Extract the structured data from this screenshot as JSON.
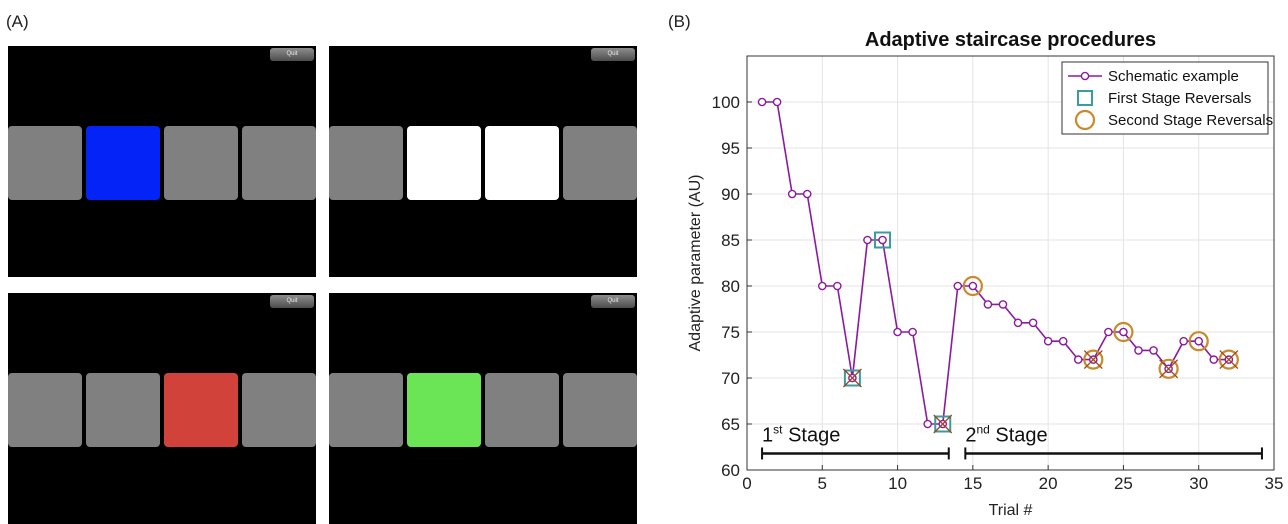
{
  "panel_a": {
    "label": "(A)",
    "screens": [
      {
        "quit_label": "Quit",
        "tiles": [
          "#808080",
          "#0323f7",
          "#808080",
          "#808080"
        ]
      },
      {
        "quit_label": "Quit",
        "tiles": [
          "#808080",
          "#ffffff",
          "#ffffff",
          "#808080"
        ]
      },
      {
        "quit_label": "Quit",
        "tiles": [
          "#808080",
          "#808080",
          "#d1423b",
          "#808080"
        ]
      },
      {
        "quit_label": "Quit",
        "tiles": [
          "#808080",
          "#6be455",
          "#808080",
          "#808080"
        ]
      }
    ]
  },
  "panel_b": {
    "label": "(B)"
  },
  "chart_data": {
    "type": "line",
    "title": "Adaptive staircase procedures",
    "xlabel": "Trial #",
    "ylabel": "Adaptive parameter (AU)",
    "xlim": [
      0,
      35
    ],
    "ylim": [
      60,
      105
    ],
    "xticks": [
      0,
      5,
      10,
      15,
      20,
      25,
      30,
      35
    ],
    "yticks": [
      60,
      65,
      70,
      75,
      80,
      85,
      90,
      95,
      100
    ],
    "grid": true,
    "legend_position": "top-right",
    "series": [
      {
        "name": "Schematic example",
        "color": "#8b1a9e",
        "x": [
          1,
          2,
          3,
          4,
          5,
          6,
          7,
          8,
          9,
          10,
          11,
          12,
          13,
          14,
          15,
          16,
          17,
          18,
          19,
          20,
          21,
          22,
          23,
          24,
          25,
          26,
          27,
          28,
          29,
          30,
          31,
          32
        ],
        "y": [
          100,
          100,
          90,
          90,
          80,
          80,
          70,
          85,
          85,
          75,
          75,
          65,
          65,
          80,
          80,
          78,
          78,
          76,
          76,
          74,
          74,
          72,
          72,
          75,
          75,
          73,
          73,
          71,
          74,
          74,
          72,
          72
        ]
      },
      {
        "name": "First Stage Reversals",
        "color": "#3a9c9c",
        "marker": "square",
        "x": [
          7,
          9,
          13
        ],
        "y": [
          70,
          85,
          65
        ]
      },
      {
        "name": "Second Stage Reversals",
        "color": "#c98a2b",
        "marker": "circle",
        "x": [
          15,
          23,
          25,
          28,
          30,
          32
        ],
        "y": [
          80,
          72,
          75,
          71,
          74,
          72
        ]
      }
    ],
    "discarded_marks": {
      "color": "#a0441c",
      "x": [
        7,
        13,
        23,
        28,
        32
      ],
      "y": [
        70,
        65,
        72,
        71,
        72
      ]
    },
    "stages": [
      {
        "label": "1",
        "sup": "st",
        "suffix": " Stage",
        "start": 1,
        "end": 13.4,
        "level": 61.8
      },
      {
        "label": "2",
        "sup": "nd",
        "suffix": " Stage",
        "start": 14.5,
        "end": 34.2,
        "level": 61.8
      }
    ]
  }
}
